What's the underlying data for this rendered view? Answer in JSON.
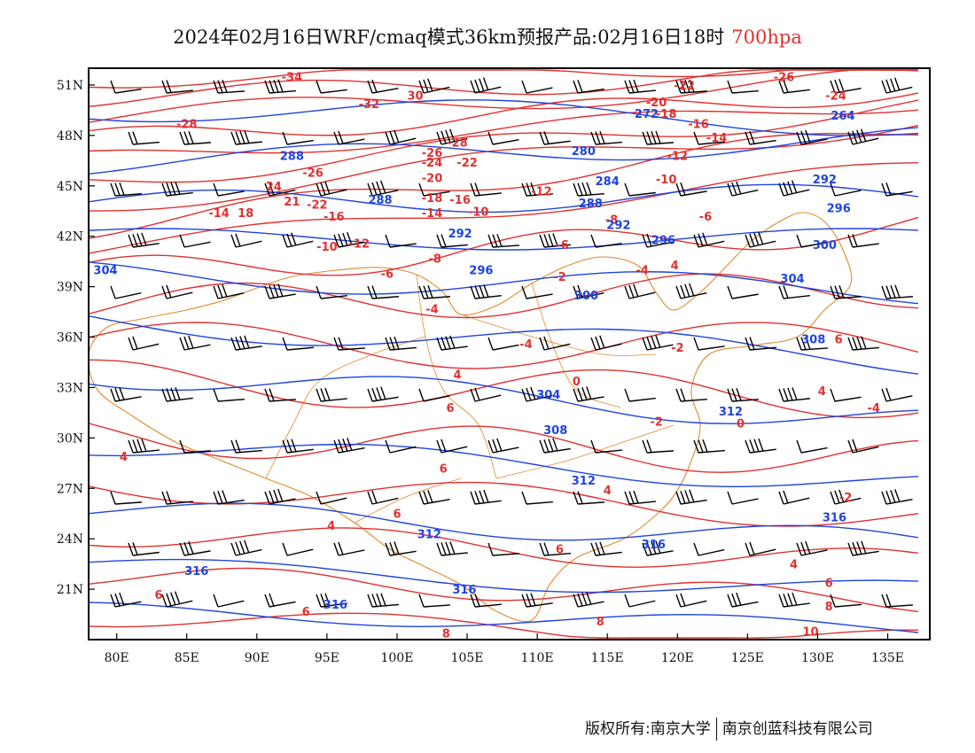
{
  "title": {
    "main": "2024年02月16日WRF/cmaq模式36km预报产品:02月16日18时",
    "level": "700hpa"
  },
  "footer": {
    "left": "版权所有:南京大学",
    "right": "南京创蓝科技有限公司"
  },
  "colors": {
    "temperature": "#e0312f",
    "geopotential": "#1f44e0",
    "boundary": "#e08a2c",
    "wind": "#000000",
    "frame": "#000000"
  },
  "map": {
    "lon_ticks": [
      "80E",
      "85E",
      "90E",
      "95E",
      "100E",
      "105E",
      "110E",
      "115E",
      "120E",
      "125E",
      "130E",
      "135E"
    ],
    "lat_ticks": [
      "51N",
      "48N",
      "45N",
      "42N",
      "39N",
      "36N",
      "33N",
      "30N",
      "27N",
      "24N",
      "21N"
    ],
    "lon_values": [
      80,
      85,
      90,
      95,
      100,
      105,
      110,
      115,
      120,
      125,
      130,
      135
    ],
    "lat_values": [
      51,
      48,
      45,
      42,
      39,
      36,
      33,
      30,
      27,
      24,
      21
    ],
    "lon_range": [
      78,
      138
    ],
    "lat_range": [
      18,
      52
    ]
  },
  "temperature_labels": [
    {
      "text": "-34",
      "lon": 92.5,
      "lat": 51.5
    },
    {
      "text": "30",
      "lon": 101.3,
      "lat": 50.4
    },
    {
      "text": "-32",
      "lon": 98.0,
      "lat": 49.9
    },
    {
      "text": "-28",
      "lon": 85.0,
      "lat": 48.7
    },
    {
      "text": "-28",
      "lon": 104.3,
      "lat": 47.6
    },
    {
      "text": "-26",
      "lon": 102.5,
      "lat": 47.0
    },
    {
      "text": "-24",
      "lon": 102.5,
      "lat": 46.4
    },
    {
      "text": "-22",
      "lon": 105.0,
      "lat": 46.4
    },
    {
      "text": "-26",
      "lon": 94.0,
      "lat": 45.8
    },
    {
      "text": "-20",
      "lon": 102.5,
      "lat": 45.5
    },
    {
      "text": "24",
      "lon": 91.2,
      "lat": 45.0
    },
    {
      "text": "-18",
      "lon": 102.5,
      "lat": 44.3
    },
    {
      "text": "-16",
      "lon": 104.5,
      "lat": 44.2
    },
    {
      "text": "21",
      "lon": 92.5,
      "lat": 44.1
    },
    {
      "text": "-22",
      "lon": 94.3,
      "lat": 43.9
    },
    {
      "text": "-14",
      "lon": 87.3,
      "lat": 43.4
    },
    {
      "text": "18",
      "lon": 89.2,
      "lat": 43.4
    },
    {
      "text": "-16",
      "lon": 95.5,
      "lat": 43.2
    },
    {
      "text": "-14",
      "lon": 102.5,
      "lat": 43.4
    },
    {
      "text": "-10",
      "lon": 105.8,
      "lat": 43.5
    },
    {
      "text": "-12",
      "lon": 110.3,
      "lat": 44.7
    },
    {
      "text": "-10",
      "lon": 95.0,
      "lat": 41.4
    },
    {
      "text": "-12",
      "lon": 97.3,
      "lat": 41.6
    },
    {
      "text": "-8",
      "lon": 102.7,
      "lat": 40.7
    },
    {
      "text": "-6",
      "lon": 99.3,
      "lat": 39.8
    },
    {
      "text": "-6",
      "lon": 111.8,
      "lat": 41.5
    },
    {
      "text": "-8",
      "lon": 115.3,
      "lat": 43.0
    },
    {
      "text": "-2",
      "lon": 111.6,
      "lat": 39.6
    },
    {
      "text": "-4",
      "lon": 102.5,
      "lat": 37.7
    },
    {
      "text": "-4",
      "lon": 117.5,
      "lat": 40.0
    },
    {
      "text": "4",
      "lon": 119.8,
      "lat": 40.3
    },
    {
      "text": "-2",
      "lon": 120.0,
      "lat": 35.4
    },
    {
      "text": "-4",
      "lon": 109.2,
      "lat": 35.6
    },
    {
      "text": "4",
      "lon": 104.3,
      "lat": 33.8
    },
    {
      "text": "0",
      "lon": 112.8,
      "lat": 33.4
    },
    {
      "text": "6",
      "lon": 103.8,
      "lat": 31.8
    },
    {
      "text": "-2",
      "lon": 118.5,
      "lat": 31.0
    },
    {
      "text": "0",
      "lon": 124.5,
      "lat": 30.9
    },
    {
      "text": "6",
      "lon": 103.3,
      "lat": 28.2
    },
    {
      "text": "4",
      "lon": 115.0,
      "lat": 26.9
    },
    {
      "text": "4",
      "lon": 95.3,
      "lat": 24.8
    },
    {
      "text": "6",
      "lon": 100.0,
      "lat": 25.5
    },
    {
      "text": "4",
      "lon": 80.5,
      "lat": 28.9
    },
    {
      "text": "6",
      "lon": 83.0,
      "lat": 20.7
    },
    {
      "text": "6",
      "lon": 93.5,
      "lat": 19.7
    },
    {
      "text": "6",
      "lon": 111.6,
      "lat": 23.4
    },
    {
      "text": "4",
      "lon": 130.3,
      "lat": 32.8
    },
    {
      "text": "6",
      "lon": 131.5,
      "lat": 35.9
    },
    {
      "text": "-4",
      "lon": 134.0,
      "lat": 31.8
    },
    {
      "text": "-2",
      "lon": 132.0,
      "lat": 26.5
    },
    {
      "text": "4",
      "lon": 128.3,
      "lat": 22.5
    },
    {
      "text": "6",
      "lon": 130.8,
      "lat": 21.4
    },
    {
      "text": "8",
      "lon": 130.8,
      "lat": 20.0
    },
    {
      "text": "8",
      "lon": 103.5,
      "lat": 18.4
    },
    {
      "text": "8",
      "lon": 114.5,
      "lat": 19.1
    },
    {
      "text": "10",
      "lon": 129.5,
      "lat": 18.5
    },
    {
      "text": "-10",
      "lon": 119.2,
      "lat": 45.4
    },
    {
      "text": "-12",
      "lon": 120.0,
      "lat": 46.8
    },
    {
      "text": "-14",
      "lon": 122.8,
      "lat": 47.9
    },
    {
      "text": "-16",
      "lon": 121.5,
      "lat": 48.7
    },
    {
      "text": "-18",
      "lon": 119.2,
      "lat": 49.3
    },
    {
      "text": "-20",
      "lon": 118.5,
      "lat": 50.0
    },
    {
      "text": "-22",
      "lon": 120.5,
      "lat": 51.0
    },
    {
      "text": "-24",
      "lon": 131.3,
      "lat": 50.4
    },
    {
      "text": "-26",
      "lon": 127.6,
      "lat": 51.5
    },
    {
      "text": "-6",
      "lon": 122.0,
      "lat": 43.2
    }
  ],
  "geopotential_labels": [
    {
      "text": "288",
      "lon": 92.5,
      "lat": 46.8
    },
    {
      "text": "280",
      "lon": 113.3,
      "lat": 47.1
    },
    {
      "text": "272",
      "lon": 117.8,
      "lat": 49.3
    },
    {
      "text": "264",
      "lon": 131.8,
      "lat": 49.2
    },
    {
      "text": "284",
      "lon": 115.0,
      "lat": 45.3
    },
    {
      "text": "288",
      "lon": 98.8,
      "lat": 44.2
    },
    {
      "text": "288",
      "lon": 113.8,
      "lat": 44.0
    },
    {
      "text": "292",
      "lon": 130.5,
      "lat": 45.4
    },
    {
      "text": "292",
      "lon": 115.8,
      "lat": 42.7
    },
    {
      "text": "292",
      "lon": 104.5,
      "lat": 42.2
    },
    {
      "text": "296",
      "lon": 131.5,
      "lat": 43.7
    },
    {
      "text": "296",
      "lon": 119.0,
      "lat": 41.8
    },
    {
      "text": "300",
      "lon": 130.5,
      "lat": 41.5
    },
    {
      "text": "296",
      "lon": 106.0,
      "lat": 40.0
    },
    {
      "text": "304",
      "lon": 79.2,
      "lat": 40.0
    },
    {
      "text": "300",
      "lon": 113.5,
      "lat": 38.5
    },
    {
      "text": "304",
      "lon": 128.2,
      "lat": 39.5
    },
    {
      "text": "308",
      "lon": 129.7,
      "lat": 35.9
    },
    {
      "text": "304",
      "lon": 110.8,
      "lat": 32.6
    },
    {
      "text": "308",
      "lon": 111.3,
      "lat": 30.5
    },
    {
      "text": "312",
      "lon": 123.8,
      "lat": 31.6
    },
    {
      "text": "312",
      "lon": 113.3,
      "lat": 27.5
    },
    {
      "text": "316",
      "lon": 131.2,
      "lat": 25.3
    },
    {
      "text": "312",
      "lon": 102.3,
      "lat": 24.3
    },
    {
      "text": "316",
      "lon": 118.3,
      "lat": 23.7
    },
    {
      "text": "316",
      "lon": 85.7,
      "lat": 22.1
    },
    {
      "text": "316",
      "lon": 104.8,
      "lat": 21.0
    },
    {
      "text": "316",
      "lon": 95.6,
      "lat": 20.1
    }
  ]
}
